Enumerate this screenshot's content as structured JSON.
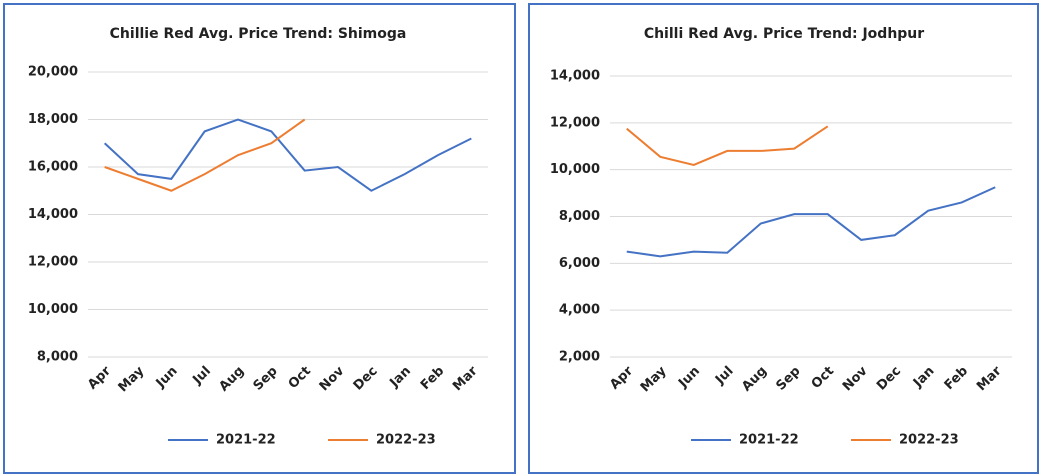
{
  "chart_data": [
    {
      "type": "line",
      "title": "Chillie Red Avg. Price Trend: Shimoga",
      "categories": [
        "Apr",
        "May",
        "Jun",
        "Jul",
        "Aug",
        "Sep",
        "Oct",
        "Nov",
        "Dec",
        "Jan",
        "Feb",
        "Mar"
      ],
      "series": [
        {
          "name": "2021-22",
          "color": "#4472c4",
          "values": [
            17000,
            15700,
            15500,
            17500,
            18000,
            17500,
            15850,
            16000,
            15000,
            15700,
            16500,
            17200
          ]
        },
        {
          "name": "2022-23",
          "color": "#ed7d31",
          "values": [
            16000,
            15500,
            15000,
            15700,
            16500,
            17000,
            18000,
            null,
            null,
            null,
            null,
            null
          ]
        }
      ],
      "ylim": [
        8000,
        20000
      ],
      "yticks": [
        {
          "value": 8000,
          "label": "8,000"
        },
        {
          "value": 10000,
          "label": "10,000"
        },
        {
          "value": 12000,
          "label": "12,000"
        },
        {
          "value": 14000,
          "label": "14,000"
        },
        {
          "value": 16000,
          "label": "16,000"
        },
        {
          "value": 18000,
          "label": "18,000"
        },
        {
          "value": 20000,
          "label": "20,000"
        }
      ],
      "grid": true,
      "legend": "bottom"
    },
    {
      "type": "line",
      "title": "Chilli Red Avg. Price Trend: Jodhpur",
      "categories": [
        "Apr",
        "May",
        "Jun",
        "Jul",
        "Aug",
        "Sep",
        "Oct",
        "Nov",
        "Dec",
        "Jan",
        "Feb",
        "Mar"
      ],
      "series": [
        {
          "name": "2021-22",
          "color": "#4472c4",
          "values": [
            6500,
            6300,
            6500,
            6450,
            7700,
            8100,
            8100,
            7000,
            7200,
            8250,
            8600,
            9250
          ]
        },
        {
          "name": "2022-23",
          "color": "#ed7d31",
          "values": [
            11750,
            10550,
            10200,
            10800,
            10800,
            10900,
            11850,
            null,
            null,
            null,
            null,
            null
          ]
        }
      ],
      "ylim": [
        2000,
        14000
      ],
      "yticks": [
        {
          "value": 2000,
          "label": "2,000"
        },
        {
          "value": 4000,
          "label": "4,000"
        },
        {
          "value": 6000,
          "label": "6,000"
        },
        {
          "value": 8000,
          "label": "8,000"
        },
        {
          "value": 10000,
          "label": "10,000"
        },
        {
          "value": 12000,
          "label": "12,000"
        },
        {
          "value": 14000,
          "label": "14,000"
        }
      ],
      "grid": true,
      "legend": "bottom"
    }
  ]
}
